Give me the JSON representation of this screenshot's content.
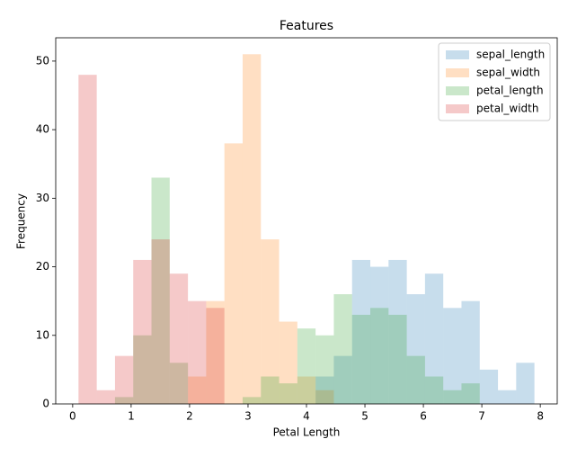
{
  "chart_data": {
    "type": "histogram",
    "title": "Features",
    "x_label": "Petal Length",
    "y_label": "Frequency",
    "bins": [
      0.1,
      0.412,
      0.724,
      1.036,
      1.348,
      1.66,
      1.972,
      2.284,
      2.596,
      2.908,
      3.22,
      3.532,
      3.844,
      4.156,
      4.468,
      4.78,
      5.092,
      5.404,
      5.716,
      6.028,
      6.34,
      6.652,
      6.964,
      7.276,
      7.588,
      7.9
    ],
    "series": [
      {
        "name": "sepal_length",
        "color": "#1f77b4",
        "values": [
          0,
          0,
          0,
          0,
          0,
          0,
          0,
          0,
          0,
          0,
          0,
          0,
          0,
          4,
          7,
          21,
          20,
          21,
          16,
          19,
          14,
          15,
          5,
          2,
          6
        ]
      },
      {
        "name": "sepal_width",
        "color": "#ff7f0e",
        "values": [
          0,
          0,
          0,
          0,
          0,
          0,
          4,
          15,
          38,
          51,
          24,
          12,
          4,
          2,
          0,
          0,
          0,
          0,
          0,
          0,
          0,
          0,
          0,
          0,
          0
        ]
      },
      {
        "name": "petal_length",
        "color": "#2ca02c",
        "values": [
          0,
          0,
          1,
          10,
          33,
          6,
          0,
          0,
          0,
          1,
          4,
          3,
          11,
          10,
          16,
          13,
          14,
          13,
          7,
          4,
          2,
          3,
          0,
          0,
          0
        ]
      },
      {
        "name": "petal_width",
        "color": "#d62728",
        "values": [
          48,
          2,
          7,
          21,
          24,
          19,
          15,
          14,
          0,
          0,
          0,
          0,
          0,
          0,
          0,
          0,
          0,
          0,
          0,
          0,
          0,
          0,
          0,
          0,
          0
        ]
      }
    ],
    "opacity": 0.25,
    "xlim": [
      -0.29,
      8.29
    ],
    "ylim": [
      0,
      53.4
    ],
    "xticks": [
      0,
      1,
      2,
      3,
      4,
      5,
      6,
      7,
      8
    ],
    "yticks": [
      0,
      10,
      20,
      30,
      40,
      50
    ],
    "legend": "upper right"
  }
}
